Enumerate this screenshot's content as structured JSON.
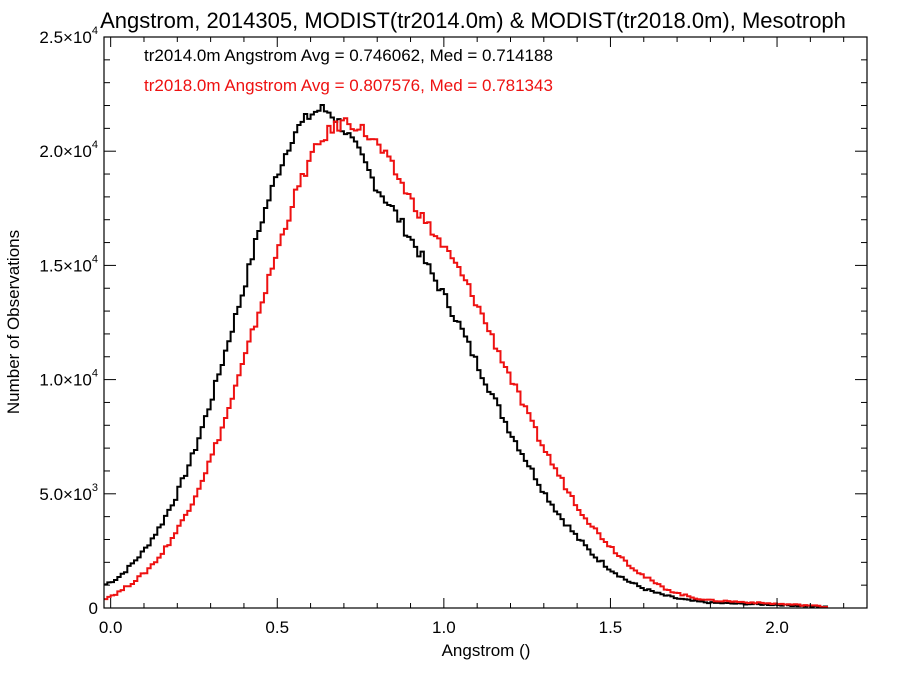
{
  "chart_data": {
    "type": "histogram",
    "title": "Angstrom, 2014305, MODIST(tr2014.0m) & MODIST(tr2018.0m), Mesotroph",
    "xlabel": "Angstrom ()",
    "ylabel": "Number of Observations",
    "xlim": [
      -0.02,
      2.27
    ],
    "ylim": [
      0,
      25000
    ],
    "x_ticks": [
      0.0,
      0.5,
      1.0,
      1.5,
      2.0
    ],
    "x_tick_labels": [
      "0.0",
      "0.5",
      "1.0",
      "1.5",
      "2.0"
    ],
    "y_ticks": [
      0,
      5000,
      10000,
      15000,
      20000,
      25000
    ],
    "y_tick_labels": [
      {
        "mantissa": "0",
        "exponent": ""
      },
      {
        "mantissa": "5.0×10",
        "exponent": "3"
      },
      {
        "mantissa": "1.0×10",
        "exponent": "4"
      },
      {
        "mantissa": "1.5×10",
        "exponent": "4"
      },
      {
        "mantissa": "2.0×10",
        "exponent": "4"
      },
      {
        "mantissa": "2.5×10",
        "exponent": "4"
      }
    ],
    "annotations": [
      "tr2014.0m Angstrom Avg = 0.746062, Med = 0.714188",
      "tr2018.0m Angstrom Avg = 0.807576, Med = 0.781343"
    ],
    "series": [
      {
        "color": "#000000",
        "points": [
          [
            -0.02,
            1000
          ],
          [
            0.02,
            1300
          ],
          [
            0.05,
            1700
          ],
          [
            0.1,
            2500
          ],
          [
            0.15,
            3600
          ],
          [
            0.2,
            5000
          ],
          [
            0.25,
            6800
          ],
          [
            0.3,
            9000
          ],
          [
            0.35,
            11500
          ],
          [
            0.4,
            14000
          ],
          [
            0.45,
            16800
          ],
          [
            0.5,
            19000
          ],
          [
            0.55,
            20800
          ],
          [
            0.6,
            21600
          ],
          [
            0.63,
            21850
          ],
          [
            0.66,
            21700
          ],
          [
            0.7,
            21000
          ],
          [
            0.75,
            19800
          ],
          [
            0.8,
            18400
          ],
          [
            0.85,
            17400
          ],
          [
            0.9,
            16200
          ],
          [
            0.95,
            15000
          ],
          [
            1.0,
            13700
          ],
          [
            1.05,
            12300
          ],
          [
            1.1,
            10700
          ],
          [
            1.15,
            9200
          ],
          [
            1.2,
            7700
          ],
          [
            1.25,
            6400
          ],
          [
            1.3,
            5100
          ],
          [
            1.35,
            4000
          ],
          [
            1.4,
            3100
          ],
          [
            1.45,
            2300
          ],
          [
            1.5,
            1700
          ],
          [
            1.55,
            1200
          ],
          [
            1.6,
            850
          ],
          [
            1.65,
            600
          ],
          [
            1.7,
            420
          ],
          [
            1.75,
            300
          ],
          [
            1.8,
            230
          ],
          [
            1.9,
            180
          ],
          [
            2.0,
            140
          ],
          [
            2.1,
            80
          ],
          [
            2.15,
            40
          ]
        ]
      },
      {
        "color": "#ee1111",
        "points": [
          [
            -0.02,
            400
          ],
          [
            0.02,
            650
          ],
          [
            0.05,
            950
          ],
          [
            0.1,
            1500
          ],
          [
            0.15,
            2300
          ],
          [
            0.2,
            3400
          ],
          [
            0.25,
            4800
          ],
          [
            0.3,
            6500
          ],
          [
            0.35,
            8500
          ],
          [
            0.4,
            10800
          ],
          [
            0.45,
            13200
          ],
          [
            0.5,
            15600
          ],
          [
            0.55,
            17900
          ],
          [
            0.6,
            19700
          ],
          [
            0.65,
            20800
          ],
          [
            0.7,
            21300
          ],
          [
            0.73,
            21200
          ],
          [
            0.75,
            21000
          ],
          [
            0.8,
            20300
          ],
          [
            0.85,
            19200
          ],
          [
            0.9,
            17900
          ],
          [
            0.95,
            16800
          ],
          [
            1.0,
            15800
          ],
          [
            1.05,
            14700
          ],
          [
            1.1,
            13300
          ],
          [
            1.15,
            11700
          ],
          [
            1.2,
            10100
          ],
          [
            1.25,
            8500
          ],
          [
            1.3,
            7000
          ],
          [
            1.35,
            5700
          ],
          [
            1.4,
            4500
          ],
          [
            1.45,
            3500
          ],
          [
            1.5,
            2700
          ],
          [
            1.55,
            2000
          ],
          [
            1.6,
            1400
          ],
          [
            1.65,
            950
          ],
          [
            1.7,
            650
          ],
          [
            1.75,
            450
          ],
          [
            1.8,
            330
          ],
          [
            1.85,
            300
          ],
          [
            1.9,
            260
          ],
          [
            2.0,
            180
          ],
          [
            2.1,
            110
          ],
          [
            2.15,
            50
          ]
        ]
      }
    ]
  }
}
